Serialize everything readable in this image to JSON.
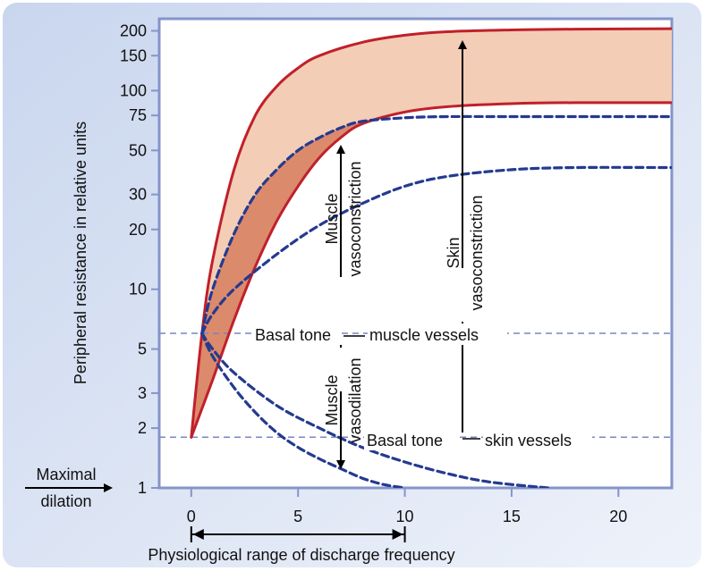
{
  "figure": {
    "y_axis_label": "Peripheral resistance in relative units",
    "x_axis_label": "Physiological range of discharge frequency",
    "maximal_dilation_label": [
      "Maximal",
      "dilation"
    ],
    "basal_tone_muscle_label": "Basal tone",
    "basal_tone_muscle_suffix": "muscle vessels",
    "basal_tone_skin_label": "Basal tone",
    "basal_tone_skin_suffix": "skin vessels",
    "muscle_vasoconstriction_label": [
      "Muscle",
      "vasoconstriction"
    ],
    "muscle_vasodilation_label": [
      "Muscle",
      "vasodilation"
    ],
    "skin_vasoconstriction_label": [
      "Skin",
      "vasoconstriction"
    ]
  },
  "chart_data": {
    "type": "line",
    "scale_y": "log",
    "x_ticks": [
      0,
      5,
      10,
      15,
      20
    ],
    "y_ticks": [
      1,
      2,
      3,
      5,
      10,
      20,
      30,
      50,
      75,
      100,
      150,
      200
    ],
    "x_range": [
      -1.5,
      22.5
    ],
    "y_range": [
      1,
      230
    ],
    "physiological_range": [
      0,
      10
    ],
    "basal_tone_muscle": 6,
    "basal_tone_skin": 1.8,
    "series": [
      {
        "x": [
          0,
          0.5,
          1,
          2,
          3,
          4,
          5,
          6,
          8,
          10,
          12,
          15,
          18,
          22.5
        ],
        "values": [
          1.8,
          6,
          14,
          40,
          75,
          105,
          130,
          150,
          175,
          190,
          198,
          202,
          204,
          205
        ]
      },
      {
        "x": [
          0,
          1,
          2,
          3,
          4,
          5,
          6,
          7,
          8,
          10,
          12,
          15,
          18,
          22.5
        ],
        "values": [
          1.8,
          3.5,
          7,
          13,
          22,
          33,
          46,
          58,
          68,
          78,
          83,
          86,
          87,
          87
        ]
      },
      {
        "x": [
          0.5,
          1,
          2,
          3,
          4,
          5,
          6,
          7,
          8,
          10,
          12,
          15,
          22.5
        ],
        "values": [
          6,
          10,
          19,
          30,
          40,
          50,
          58,
          65,
          70,
          73,
          74,
          74,
          74
        ]
      },
      {
        "x": [
          0.5,
          1,
          2,
          4,
          6,
          8,
          10,
          12,
          15,
          18,
          22.5
        ],
        "values": [
          6,
          7.5,
          10,
          15,
          21,
          27,
          33,
          37,
          40,
          41,
          41
        ]
      },
      {
        "x": [
          0.5,
          1,
          2,
          3,
          4,
          5,
          6,
          7,
          8,
          9,
          10
        ],
        "values": [
          6,
          4.6,
          3.2,
          2.4,
          1.9,
          1.6,
          1.4,
          1.25,
          1.12,
          1.04,
          1.0
        ]
      },
      {
        "x": [
          0.5,
          1,
          2,
          4,
          6,
          8,
          10,
          12,
          14,
          16.7
        ],
        "values": [
          6,
          5,
          3.8,
          2.6,
          2.0,
          1.6,
          1.35,
          1.18,
          1.07,
          1.0
        ]
      }
    ]
  },
  "colors": {
    "panel_bg": "#dde6f5",
    "frame": "#8594c9",
    "curve_red": "#c0202a",
    "fill_light": "#f3cdb6",
    "fill_dark": "#db8a6c",
    "dash_blue": "#243a8f",
    "basal_line": "#7a86c0"
  }
}
